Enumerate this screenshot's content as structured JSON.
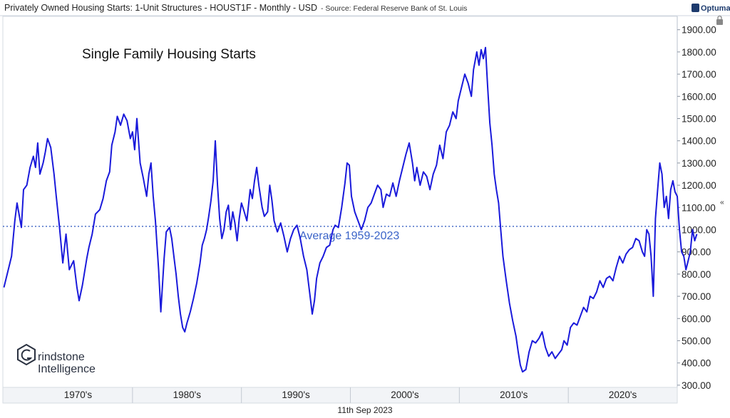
{
  "header": {
    "title": "Privately Owned Housing Starts: 1-Unit Structures - HOUST1F - Monthly - USD",
    "source": "- Source: Federal Reserve Bank of St. Louis"
  },
  "brand": "Optuma",
  "date_label": "11th Sep 2023",
  "watermark": {
    "line1": "rindstone",
    "line2": "Intelligence"
  },
  "chart_data": {
    "type": "line",
    "title": "Single Family Housing Starts",
    "x_unit": "year",
    "xlim": [
      1968.1,
      2030.0
    ],
    "ylim": [
      290,
      1960
    ],
    "y_ticks": [
      300,
      400,
      500,
      600,
      700,
      800,
      900,
      1000,
      1100,
      1200,
      1300,
      1400,
      1500,
      1600,
      1700,
      1800,
      1900
    ],
    "y_tick_labels": [
      "300.00",
      "400.00",
      "500.00",
      "600.00",
      "700.00",
      "800.00",
      "900.00",
      "1000.00",
      "1100.00",
      "1200.00",
      "1300.00",
      "1400.00",
      "1500.00",
      "1600.00",
      "1700.00",
      "1800.00",
      "1900.00"
    ],
    "x_tick_labels": [
      {
        "label": "1970's",
        "x": 1975
      },
      {
        "label": "1980's",
        "x": 1985
      },
      {
        "label": "1990's",
        "x": 1995
      },
      {
        "label": "2000's",
        "x": 2005
      },
      {
        "label": "2010's",
        "x": 2015
      },
      {
        "label": "2020's",
        "x": 2025
      }
    ],
    "x_separators": [
      1980,
      1990,
      2000,
      2010,
      2020
    ],
    "reference_line": {
      "value": 1015,
      "label": "Average 1959-2023"
    },
    "series": [
      {
        "color": "#1a1adb",
        "points": [
          [
            1968.2,
            740
          ],
          [
            1968.5,
            800
          ],
          [
            1968.9,
            880
          ],
          [
            1969.2,
            1040
          ],
          [
            1969.4,
            1120
          ],
          [
            1969.8,
            1010
          ],
          [
            1970.0,
            1180
          ],
          [
            1970.3,
            1200
          ],
          [
            1970.6,
            1280
          ],
          [
            1970.9,
            1330
          ],
          [
            1971.1,
            1280
          ],
          [
            1971.3,
            1390
          ],
          [
            1971.5,
            1250
          ],
          [
            1971.8,
            1300
          ],
          [
            1972.0,
            1350
          ],
          [
            1972.2,
            1410
          ],
          [
            1972.5,
            1370
          ],
          [
            1972.8,
            1250
          ],
          [
            1973.0,
            1150
          ],
          [
            1973.3,
            1010
          ],
          [
            1973.6,
            850
          ],
          [
            1973.9,
            980
          ],
          [
            1974.2,
            820
          ],
          [
            1974.6,
            860
          ],
          [
            1974.9,
            740
          ],
          [
            1975.1,
            680
          ],
          [
            1975.4,
            750
          ],
          [
            1975.8,
            870
          ],
          [
            1976.0,
            920
          ],
          [
            1976.3,
            980
          ],
          [
            1976.6,
            1070
          ],
          [
            1977.0,
            1090
          ],
          [
            1977.3,
            1140
          ],
          [
            1977.6,
            1220
          ],
          [
            1977.9,
            1260
          ],
          [
            1978.1,
            1380
          ],
          [
            1978.4,
            1440
          ],
          [
            1978.6,
            1510
          ],
          [
            1978.9,
            1470
          ],
          [
            1979.2,
            1520
          ],
          [
            1979.5,
            1490
          ],
          [
            1979.8,
            1410
          ],
          [
            1980.0,
            1440
          ],
          [
            1980.2,
            1360
          ],
          [
            1980.4,
            1500
          ],
          [
            1980.7,
            1300
          ],
          [
            1981.0,
            1230
          ],
          [
            1981.3,
            1150
          ],
          [
            1981.5,
            1250
          ],
          [
            1981.7,
            1300
          ],
          [
            1981.9,
            1150
          ],
          [
            1982.1,
            1040
          ],
          [
            1982.4,
            820
          ],
          [
            1982.6,
            630
          ],
          [
            1982.9,
            870
          ],
          [
            1983.1,
            990
          ],
          [
            1983.4,
            1010
          ],
          [
            1983.6,
            960
          ],
          [
            1983.8,
            880
          ],
          [
            1984.0,
            800
          ],
          [
            1984.2,
            700
          ],
          [
            1984.4,
            620
          ],
          [
            1984.6,
            560
          ],
          [
            1984.8,
            540
          ],
          [
            1985.0,
            580
          ],
          [
            1985.3,
            630
          ],
          [
            1985.6,
            690
          ],
          [
            1985.9,
            760
          ],
          [
            1986.2,
            850
          ],
          [
            1986.4,
            930
          ],
          [
            1986.6,
            960
          ],
          [
            1986.8,
            1000
          ],
          [
            1987.0,
            1060
          ],
          [
            1987.2,
            1130
          ],
          [
            1987.4,
            1220
          ],
          [
            1987.6,
            1400
          ],
          [
            1987.8,
            1200
          ],
          [
            1988.0,
            1050
          ],
          [
            1988.2,
            960
          ],
          [
            1988.4,
            1000
          ],
          [
            1988.6,
            1080
          ],
          [
            1988.8,
            1110
          ],
          [
            1989.0,
            1000
          ],
          [
            1989.2,
            1080
          ],
          [
            1989.4,
            1030
          ],
          [
            1989.6,
            950
          ],
          [
            1989.8,
            1050
          ],
          [
            1990.0,
            1120
          ],
          [
            1990.2,
            1090
          ],
          [
            1990.5,
            1040
          ],
          [
            1990.8,
            1180
          ],
          [
            1991.0,
            1140
          ],
          [
            1991.2,
            1220
          ],
          [
            1991.4,
            1280
          ],
          [
            1991.6,
            1200
          ],
          [
            1991.9,
            1100
          ],
          [
            1992.1,
            1060
          ],
          [
            1992.4,
            1080
          ],
          [
            1992.6,
            1200
          ],
          [
            1992.8,
            1130
          ],
          [
            1993.0,
            1040
          ],
          [
            1993.3,
            990
          ],
          [
            1993.6,
            1030
          ],
          [
            1993.9,
            970
          ],
          [
            1994.2,
            900
          ],
          [
            1994.5,
            960
          ],
          [
            1994.8,
            1000
          ],
          [
            1995.1,
            1020
          ],
          [
            1995.4,
            960
          ],
          [
            1995.7,
            880
          ],
          [
            1996.0,
            820
          ],
          [
            1996.3,
            700
          ],
          [
            1996.5,
            620
          ],
          [
            1996.7,
            680
          ],
          [
            1996.9,
            780
          ],
          [
            1997.2,
            850
          ],
          [
            1997.5,
            880
          ],
          [
            1997.8,
            920
          ],
          [
            1998.1,
            930
          ],
          [
            1998.4,
            1000
          ],
          [
            1998.6,
            1020
          ],
          [
            1998.9,
            1010
          ],
          [
            1999.2,
            1100
          ],
          [
            1999.5,
            1210
          ],
          [
            1999.7,
            1300
          ],
          [
            1999.9,
            1290
          ],
          [
            2000.1,
            1150
          ],
          [
            2000.4,
            1080
          ],
          [
            2000.7,
            1040
          ],
          [
            2001.0,
            1000
          ],
          [
            2001.3,
            1040
          ],
          [
            2001.6,
            1100
          ],
          [
            2001.9,
            1120
          ],
          [
            2002.2,
            1160
          ],
          [
            2002.5,
            1200
          ],
          [
            2002.8,
            1180
          ],
          [
            2003.0,
            1100
          ],
          [
            2003.3,
            1160
          ],
          [
            2003.6,
            1150
          ],
          [
            2003.9,
            1210
          ],
          [
            2004.2,
            1150
          ],
          [
            2004.5,
            1220
          ],
          [
            2004.8,
            1280
          ],
          [
            2005.1,
            1340
          ],
          [
            2005.4,
            1390
          ],
          [
            2005.7,
            1300
          ],
          [
            2005.9,
            1220
          ],
          [
            2006.1,
            1280
          ],
          [
            2006.4,
            1200
          ],
          [
            2006.7,
            1260
          ],
          [
            2007.0,
            1240
          ],
          [
            2007.3,
            1180
          ],
          [
            2007.6,
            1250
          ],
          [
            2007.9,
            1290
          ],
          [
            2008.2,
            1380
          ],
          [
            2008.5,
            1320
          ],
          [
            2008.8,
            1440
          ],
          [
            2009.1,
            1470
          ],
          [
            2009.4,
            1530
          ],
          [
            2009.7,
            1500
          ],
          [
            2009.9,
            1580
          ],
          [
            2010.2,
            1640
          ],
          [
            2010.5,
            1700
          ],
          [
            2010.8,
            1660
          ],
          [
            2011.1,
            1600
          ],
          [
            2011.3,
            1720
          ],
          [
            2011.6,
            1800
          ],
          [
            2011.8,
            1740
          ],
          [
            2012.0,
            1810
          ],
          [
            2012.2,
            1770
          ],
          [
            2012.4,
            1820
          ],
          [
            2012.6,
            1640
          ],
          [
            2012.8,
            1480
          ],
          [
            2013.0,
            1380
          ],
          [
            2013.2,
            1250
          ],
          [
            2013.4,
            1180
          ],
          [
            2013.6,
            1120
          ],
          [
            2013.8,
            1000
          ],
          [
            2014.0,
            880
          ],
          [
            2014.3,
            770
          ],
          [
            2014.6,
            670
          ],
          [
            2014.9,
            590
          ],
          [
            2015.2,
            520
          ],
          [
            2015.4,
            450
          ],
          [
            2015.6,
            390
          ],
          [
            2015.8,
            360
          ],
          [
            2016.1,
            370
          ],
          [
            2016.4,
            450
          ],
          [
            2016.7,
            500
          ],
          [
            2017.0,
            490
          ],
          [
            2017.3,
            510
          ],
          [
            2017.6,
            540
          ],
          [
            2017.9,
            470
          ],
          [
            2018.2,
            430
          ],
          [
            2018.5,
            450
          ],
          [
            2018.8,
            420
          ],
          [
            2019.1,
            440
          ],
          [
            2019.4,
            460
          ],
          [
            2019.6,
            500
          ],
          [
            2019.9,
            480
          ],
          [
            2020.2,
            560
          ],
          [
            2020.5,
            580
          ],
          [
            2020.8,
            570
          ],
          [
            2021.1,
            610
          ],
          [
            2021.4,
            650
          ],
          [
            2021.7,
            630
          ],
          [
            2022.0,
            700
          ],
          [
            2022.3,
            690
          ],
          [
            2022.6,
            720
          ],
          [
            2022.9,
            770
          ],
          [
            2023.2,
            740
          ],
          [
            2023.5,
            780
          ],
          [
            2023.8,
            790
          ],
          [
            2024.1,
            770
          ],
          [
            2024.4,
            830
          ],
          [
            2024.7,
            880
          ],
          [
            2025.0,
            850
          ],
          [
            2025.3,
            890
          ],
          [
            2025.6,
            910
          ],
          [
            2025.9,
            920
          ],
          [
            2026.2,
            960
          ],
          [
            2026.5,
            950
          ],
          [
            2026.8,
            900
          ],
          [
            2027.0,
            880
          ],
          [
            2027.2,
            1000
          ],
          [
            2027.4,
            980
          ],
          [
            2027.6,
            880
          ],
          [
            2027.8,
            700
          ],
          [
            2028.0,
            1050
          ],
          [
            2028.2,
            1180
          ],
          [
            2028.4,
            1300
          ],
          [
            2028.6,
            1250
          ],
          [
            2028.8,
            1100
          ],
          [
            2029.0,
            1150
          ],
          [
            2029.2,
            1050
          ],
          [
            2029.4,
            1180
          ],
          [
            2029.6,
            1220
          ],
          [
            2029.8,
            1170
          ],
          [
            2030.0,
            1150
          ],
          [
            2030.2,
            1000
          ],
          [
            2030.4,
            900
          ],
          [
            2030.6,
            880
          ],
          [
            2030.8,
            820
          ],
          [
            2031.0,
            860
          ],
          [
            2031.2,
            900
          ],
          [
            2031.4,
            1000
          ],
          [
            2031.6,
            950
          ],
          [
            2031.8,
            980
          ]
        ]
      }
    ]
  }
}
